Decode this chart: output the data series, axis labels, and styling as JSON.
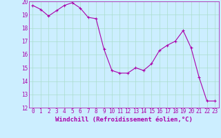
{
  "x": [
    0,
    1,
    2,
    3,
    4,
    5,
    6,
    7,
    8,
    9,
    10,
    11,
    12,
    13,
    14,
    15,
    16,
    17,
    18,
    19,
    20,
    21,
    22,
    23
  ],
  "y": [
    19.7,
    19.4,
    18.9,
    19.3,
    19.7,
    19.9,
    19.5,
    18.8,
    18.7,
    16.4,
    14.8,
    14.6,
    14.6,
    15.0,
    14.8,
    15.3,
    16.3,
    16.7,
    17.0,
    17.8,
    16.5,
    14.3,
    12.5,
    12.5
  ],
  "line_color": "#aa00aa",
  "marker": "+",
  "bg_color": "#cceeff",
  "grid_color": "#aaddcc",
  "axis_label_color": "#aa00aa",
  "tick_color": "#aa00aa",
  "xlabel": "Windchill (Refroidissement éolien,°C)",
  "ylim": [
    12,
    20
  ],
  "xlim": [
    -0.5,
    23.5
  ],
  "yticks": [
    12,
    13,
    14,
    15,
    16,
    17,
    18,
    19,
    20
  ],
  "xticks": [
    0,
    1,
    2,
    3,
    4,
    5,
    6,
    7,
    8,
    9,
    10,
    11,
    12,
    13,
    14,
    15,
    16,
    17,
    18,
    19,
    20,
    21,
    22,
    23
  ],
  "label_fontsize": 6.5,
  "tick_fontsize": 5.5
}
